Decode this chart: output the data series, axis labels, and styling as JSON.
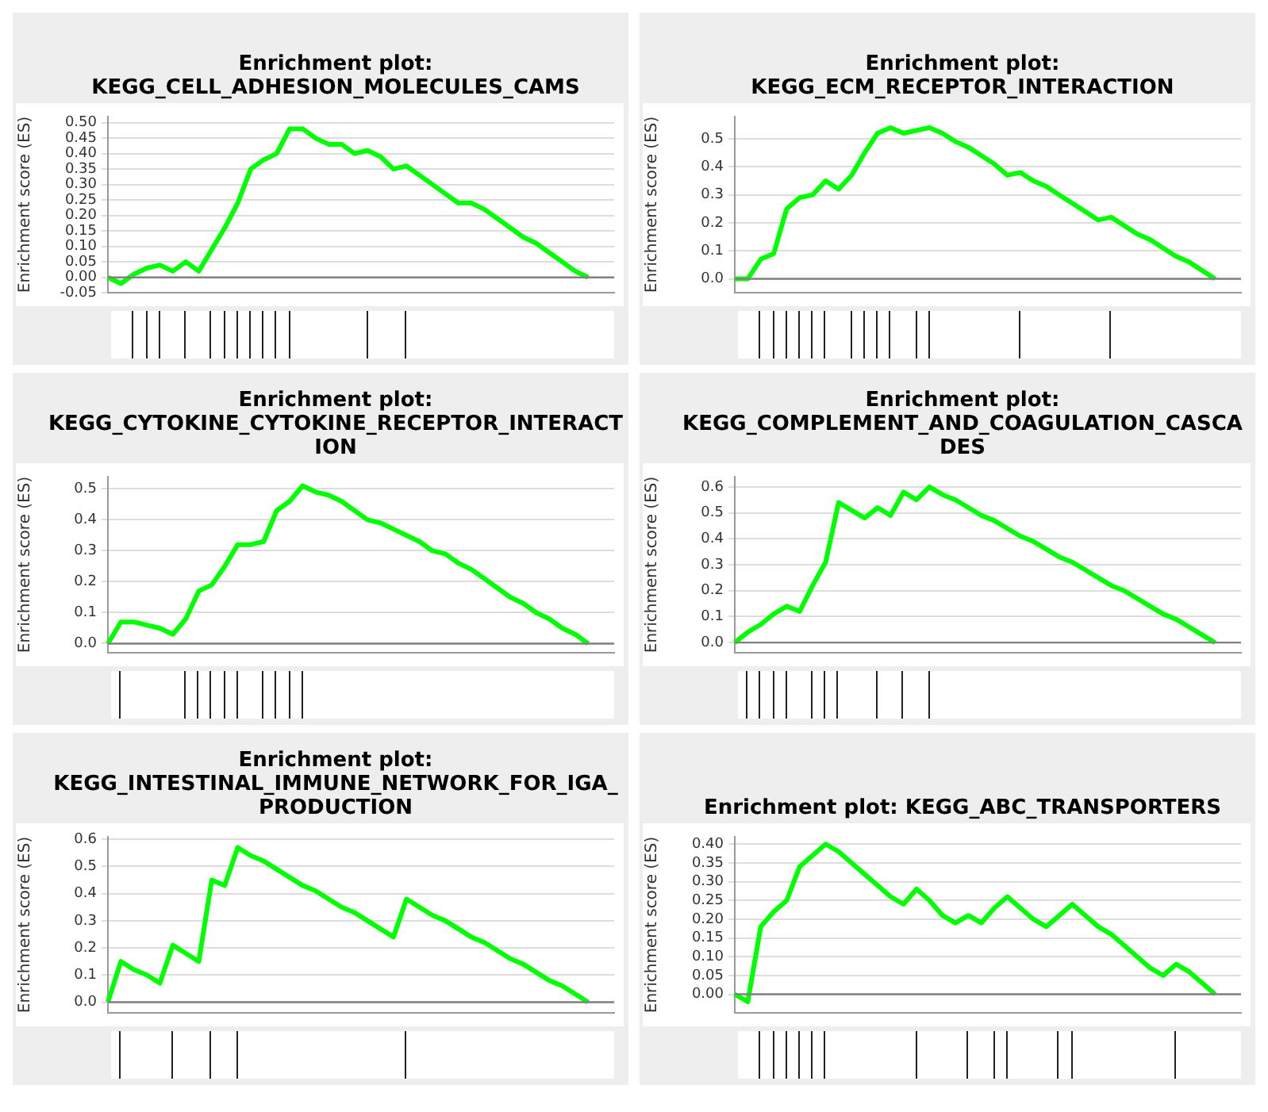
{
  "chart_data": [
    {
      "type": "line",
      "title": "Enrichment plot: KEGG_CELL_ADHESION_MOLECULES_CAMS",
      "ylabel": "Enrichment score (ES)",
      "categories": [
        null,
        null,
        null,
        null,
        null,
        null,
        null,
        null,
        null,
        null,
        null,
        null,
        null,
        null,
        null,
        null,
        null,
        null,
        null,
        null,
        null,
        null,
        null,
        null,
        null,
        null,
        null,
        null,
        null,
        null,
        null,
        null,
        null,
        null,
        null,
        null,
        null,
        null,
        null,
        null
      ],
      "color": "#00ff00",
      "values": [
        0.0,
        -0.02,
        0.01,
        0.03,
        0.04,
        0.02,
        0.05,
        0.02,
        0.09,
        0.16,
        0.24,
        0.35,
        0.38,
        0.4,
        0.48,
        0.48,
        0.45,
        0.43,
        0.43,
        0.4,
        0.41,
        0.39,
        0.35,
        0.36,
        0.33,
        0.3,
        0.27,
        0.24,
        0.24,
        0.22,
        0.19,
        0.16,
        0.13,
        0.11,
        0.08,
        0.05,
        0.02,
        0.0,
        null,
        null
      ],
      "ylim": [
        -0.05,
        0.52
      ],
      "yticks": [
        {
          "value": -0.05,
          "label": "-0.05"
        },
        {
          "value": 0,
          "label": "0.00"
        },
        {
          "value": 0.05,
          "label": "0.05"
        },
        {
          "value": 0.1,
          "label": "0.10"
        },
        {
          "value": 0.15,
          "label": "0.15"
        },
        {
          "value": 0.2,
          "label": "0.20"
        },
        {
          "value": 0.25,
          "label": "0.25"
        },
        {
          "value": 0.3,
          "label": "0.30"
        },
        {
          "value": 0.35,
          "label": "0.35"
        },
        {
          "value": 0.4,
          "label": "0.40"
        },
        {
          "value": 0.45,
          "label": "0.45"
        },
        {
          "value": 0.5,
          "label": "0.50"
        }
      ],
      "grid": "y",
      "tick_labels": "y",
      "ref_lines": [
        {
          "axis": "y",
          "value": 0,
          "color": "#808080"
        }
      ]
    },
    {
      "type": "line",
      "title": "Enrichment plot: KEGG_ECM_RECEPTOR_INTERACTION",
      "ylabel": "Enrichment score (ES)",
      "categories": [
        null,
        null,
        null,
        null,
        null,
        null,
        null,
        null,
        null,
        null,
        null,
        null,
        null,
        null,
        null,
        null,
        null,
        null,
        null,
        null,
        null,
        null,
        null,
        null,
        null,
        null,
        null,
        null,
        null,
        null,
        null,
        null,
        null,
        null,
        null,
        null,
        null,
        null,
        null,
        null
      ],
      "color": "#00ff00",
      "values": [
        0.0,
        0.0,
        0.07,
        0.09,
        0.25,
        0.29,
        0.3,
        0.35,
        0.32,
        0.37,
        0.45,
        0.52,
        0.54,
        0.52,
        0.53,
        0.54,
        0.52,
        0.49,
        0.47,
        0.44,
        0.41,
        0.37,
        0.38,
        0.35,
        0.33,
        0.3,
        0.27,
        0.24,
        0.21,
        0.22,
        0.19,
        0.16,
        0.14,
        0.11,
        0.08,
        0.06,
        0.03,
        0.0,
        null,
        null
      ],
      "ylim": [
        -0.05,
        0.58
      ],
      "yticks": [
        {
          "value": 0,
          "label": "0.0"
        },
        {
          "value": 0.1,
          "label": "0.1"
        },
        {
          "value": 0.2,
          "label": "0.2"
        },
        {
          "value": 0.3,
          "label": "0.3"
        },
        {
          "value": 0.4,
          "label": "0.4"
        },
        {
          "value": 0.5,
          "label": "0.5"
        }
      ],
      "grid": "y",
      "tick_labels": "y",
      "ref_lines": [
        {
          "axis": "y",
          "value": 0,
          "color": "#808080"
        }
      ]
    },
    {
      "type": "line",
      "title": "Enrichment plot: KEGG_CYTOKINE_CYTOKINE_RECEPTOR_INTERACTION",
      "ylabel": "Enrichment score (ES)",
      "categories": [
        null,
        null,
        null,
        null,
        null,
        null,
        null,
        null,
        null,
        null,
        null,
        null,
        null,
        null,
        null,
        null,
        null,
        null,
        null,
        null,
        null,
        null,
        null,
        null,
        null,
        null,
        null,
        null,
        null,
        null,
        null,
        null,
        null,
        null,
        null,
        null,
        null,
        null,
        null,
        null
      ],
      "color": "#00ff00",
      "values": [
        0.0,
        0.07,
        0.07,
        0.06,
        0.05,
        0.03,
        0.08,
        0.17,
        0.19,
        0.25,
        0.32,
        0.32,
        0.33,
        0.43,
        0.46,
        0.51,
        0.49,
        0.48,
        0.46,
        0.43,
        0.4,
        0.39,
        0.37,
        0.35,
        0.33,
        0.3,
        0.29,
        0.26,
        0.24,
        0.21,
        0.18,
        0.15,
        0.13,
        0.1,
        0.08,
        0.05,
        0.03,
        0.0,
        null,
        null
      ],
      "ylim": [
        -0.03,
        0.54
      ],
      "yticks": [
        {
          "value": 0,
          "label": "0.0"
        },
        {
          "value": 0.1,
          "label": "0.1"
        },
        {
          "value": 0.2,
          "label": "0.2"
        },
        {
          "value": 0.3,
          "label": "0.3"
        },
        {
          "value": 0.4,
          "label": "0.4"
        },
        {
          "value": 0.5,
          "label": "0.5"
        }
      ],
      "grid": "y",
      "tick_labels": "y",
      "ref_lines": [
        {
          "axis": "y",
          "value": 0,
          "color": "#808080"
        }
      ]
    },
    {
      "type": "line",
      "title": "Enrichment plot: KEGG_COMPLEMENT_AND_COAGULATION_CASCADES",
      "ylabel": "Enrichment score (ES)",
      "categories": [
        null,
        null,
        null,
        null,
        null,
        null,
        null,
        null,
        null,
        null,
        null,
        null,
        null,
        null,
        null,
        null,
        null,
        null,
        null,
        null,
        null,
        null,
        null,
        null,
        null,
        null,
        null,
        null,
        null,
        null,
        null,
        null,
        null,
        null,
        null,
        null,
        null,
        null,
        null,
        null
      ],
      "color": "#00ff00",
      "values": [
        0.0,
        0.04,
        0.07,
        0.11,
        0.14,
        0.12,
        0.22,
        0.31,
        0.54,
        0.51,
        0.48,
        0.52,
        0.49,
        0.58,
        0.55,
        0.6,
        0.57,
        0.55,
        0.52,
        0.49,
        0.47,
        0.44,
        0.41,
        0.39,
        0.36,
        0.33,
        0.31,
        0.28,
        0.25,
        0.22,
        0.2,
        0.17,
        0.14,
        0.11,
        0.09,
        0.06,
        0.03,
        0.0,
        null,
        null
      ],
      "ylim": [
        -0.04,
        0.64
      ],
      "yticks": [
        {
          "value": 0,
          "label": "0.0"
        },
        {
          "value": 0.1,
          "label": "0.1"
        },
        {
          "value": 0.2,
          "label": "0.2"
        },
        {
          "value": 0.3,
          "label": "0.3"
        },
        {
          "value": 0.4,
          "label": "0.4"
        },
        {
          "value": 0.5,
          "label": "0.5"
        },
        {
          "value": 0.6,
          "label": "0.6"
        }
      ],
      "grid": "y",
      "tick_labels": "y",
      "ref_lines": [
        {
          "axis": "y",
          "value": 0,
          "color": "#808080"
        }
      ]
    },
    {
      "type": "line",
      "title": "Enrichment plot: KEGG_INTESTINAL_IMMUNE_NETWORK_FOR_IGA_PRODUCTION",
      "ylabel": "Enrichment score (ES)",
      "categories": [
        null,
        null,
        null,
        null,
        null,
        null,
        null,
        null,
        null,
        null,
        null,
        null,
        null,
        null,
        null,
        null,
        null,
        null,
        null,
        null,
        null,
        null,
        null,
        null,
        null,
        null,
        null,
        null,
        null,
        null,
        null,
        null,
        null,
        null,
        null,
        null,
        null,
        null,
        null,
        null
      ],
      "color": "#00ff00",
      "values": [
        0.0,
        0.15,
        0.12,
        0.1,
        0.07,
        0.21,
        0.18,
        0.15,
        0.45,
        0.43,
        0.57,
        0.54,
        0.52,
        0.49,
        0.46,
        0.43,
        0.41,
        0.38,
        0.35,
        0.33,
        0.3,
        0.27,
        0.24,
        0.38,
        0.35,
        0.32,
        0.3,
        0.27,
        0.24,
        0.22,
        0.19,
        0.16,
        0.14,
        0.11,
        0.08,
        0.06,
        0.03,
        0.0,
        null,
        null
      ],
      "ylim": [
        -0.04,
        0.61
      ],
      "yticks": [
        {
          "value": 0,
          "label": "0.0"
        },
        {
          "value": 0.1,
          "label": "0.1"
        },
        {
          "value": 0.2,
          "label": "0.2"
        },
        {
          "value": 0.3,
          "label": "0.3"
        },
        {
          "value": 0.4,
          "label": "0.4"
        },
        {
          "value": 0.5,
          "label": "0.5"
        },
        {
          "value": 0.6,
          "label": "0.6"
        }
      ],
      "grid": "y",
      "tick_labels": "y",
      "ref_lines": [
        {
          "axis": "y",
          "value": 0,
          "color": "#808080"
        }
      ]
    },
    {
      "type": "line",
      "title": "Enrichment plot: KEGG_ABC_TRANSPORTERS",
      "ylabel": "Enrichment score (ES)",
      "categories": [
        null,
        null,
        null,
        null,
        null,
        null,
        null,
        null,
        null,
        null,
        null,
        null,
        null,
        null,
        null,
        null,
        null,
        null,
        null,
        null,
        null,
        null,
        null,
        null,
        null,
        null,
        null,
        null,
        null,
        null,
        null,
        null,
        null,
        null,
        null,
        null,
        null,
        null,
        null,
        null
      ],
      "color": "#00ff00",
      "values": [
        0.0,
        -0.02,
        0.18,
        0.22,
        0.25,
        0.34,
        0.37,
        0.4,
        0.38,
        0.35,
        0.32,
        0.29,
        0.26,
        0.24,
        0.28,
        0.25,
        0.21,
        0.19,
        0.21,
        0.19,
        0.23,
        0.26,
        0.23,
        0.2,
        0.18,
        0.21,
        0.24,
        0.21,
        0.18,
        0.16,
        0.13,
        0.1,
        0.07,
        0.05,
        0.08,
        0.06,
        0.03,
        0.0,
        null,
        null
      ],
      "ylim": [
        -0.05,
        0.42
      ],
      "yticks": [
        {
          "value": 0,
          "label": "0.00"
        },
        {
          "value": 0.05,
          "label": "0.05"
        },
        {
          "value": 0.1,
          "label": "0.10"
        },
        {
          "value": 0.15,
          "label": "0.15"
        },
        {
          "value": 0.2,
          "label": "0.20"
        },
        {
          "value": 0.25,
          "label": "0.25"
        },
        {
          "value": 0.3,
          "label": "0.30"
        },
        {
          "value": 0.35,
          "label": "0.35"
        },
        {
          "value": 0.4,
          "label": "0.40"
        }
      ],
      "grid": "y",
      "tick_labels": "y",
      "ref_lines": [
        {
          "axis": "y",
          "value": 0,
          "color": "#808080"
        }
      ]
    }
  ]
}
